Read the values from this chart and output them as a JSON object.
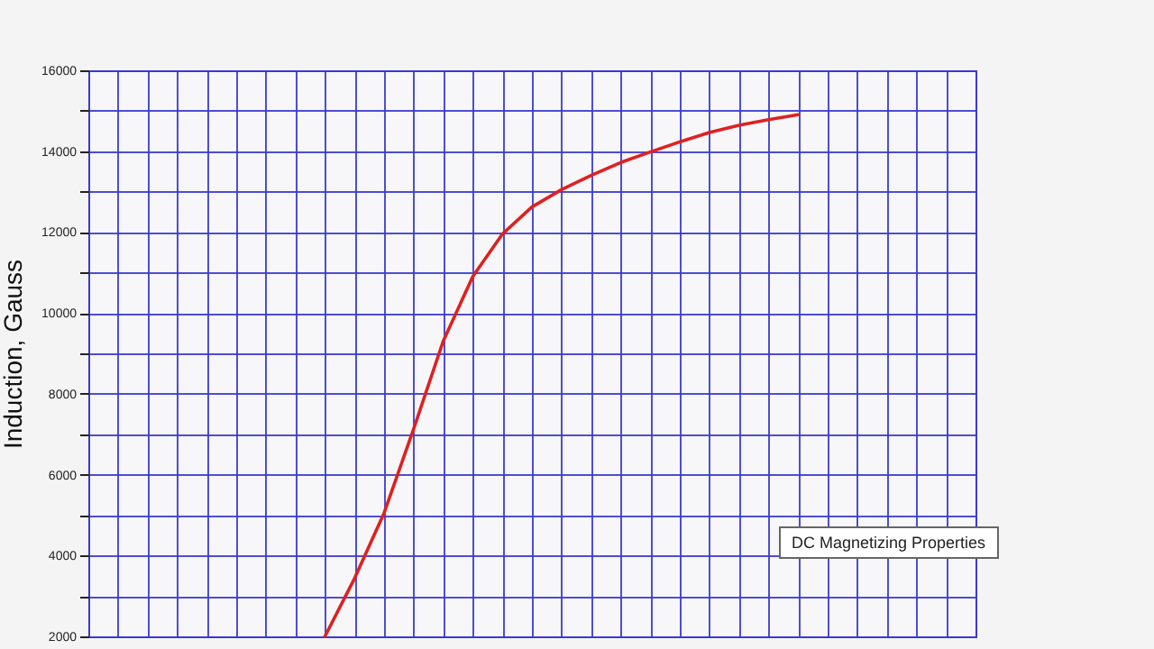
{
  "chart_data": {
    "type": "line",
    "ylabel": "Induction, Gauss",
    "categories": [
      null,
      null,
      null,
      null,
      null,
      null,
      null,
      null,
      null,
      null,
      null,
      null,
      null,
      null,
      null,
      null,
      null,
      null,
      null,
      null,
      null,
      null,
      null,
      null,
      null,
      null,
      null,
      null,
      null,
      null,
      null
    ],
    "series": [
      {
        "color": "#e02020",
        "values": [
          null,
          null,
          null,
          null,
          null,
          null,
          null,
          null,
          2000,
          3430,
          5050,
          7130,
          9300,
          10900,
          11950,
          12620,
          13050,
          13400,
          13720,
          13980,
          14230,
          14460,
          14640,
          14780,
          14900,
          null,
          null,
          null,
          null,
          null,
          null
        ]
      }
    ],
    "ylim": [
      2000,
      16000
    ],
    "yticks": [
      2000,
      {
        "value": 3000,
        "label": null
      },
      4000,
      {
        "value": 5000,
        "label": null
      },
      6000,
      {
        "value": 7000,
        "label": null
      },
      8000,
      {
        "value": 9000,
        "label": null
      },
      10000,
      {
        "value": 11000,
        "label": null
      },
      12000,
      {
        "value": 13000,
        "label": null
      },
      14000,
      {
        "value": 15000,
        "label": null
      },
      16000
    ],
    "grid": true,
    "tick_labels": "y",
    "marker": "none",
    "line_style": "solid",
    "annotations": [
      "DC Magnetizing Properties"
    ]
  }
}
